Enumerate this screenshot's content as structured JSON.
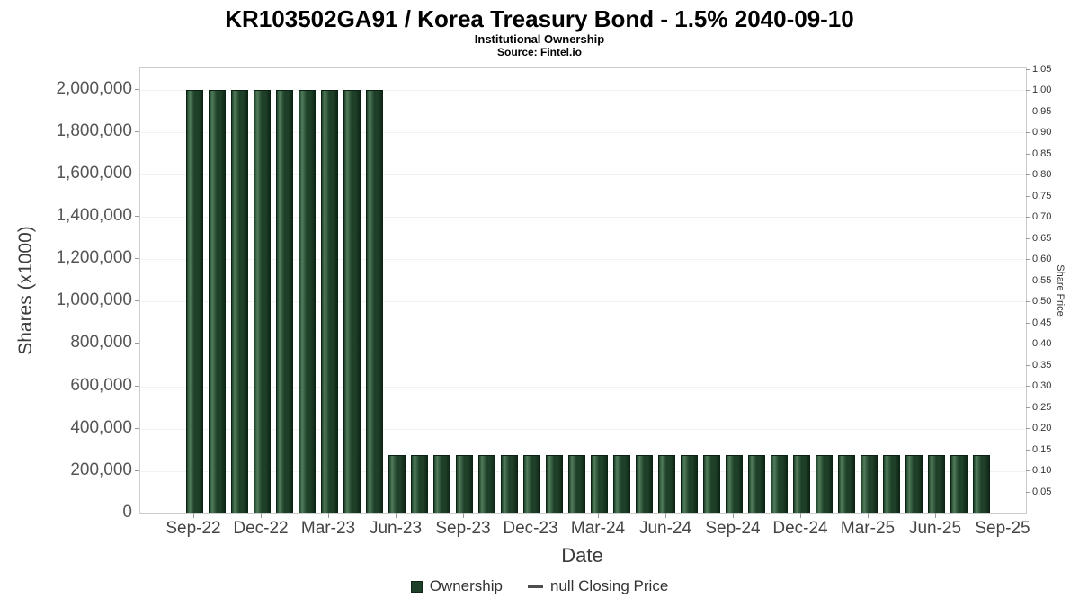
{
  "chart_data": {
    "type": "bar",
    "title": "KR103502GA91 / Korea Treasury Bond - 1.5% 2040-09-10",
    "subtitle": "Institutional Ownership",
    "source": "Source: Fintel.io",
    "xlabel": "Date",
    "ylabel_left": "Shares (x1000)",
    "ylabel_right": "Share Price",
    "categories": [
      "Sep-22",
      "Oct-22",
      "Nov-22",
      "Dec-22",
      "Jan-23",
      "Feb-23",
      "Mar-23",
      "Apr-23",
      "May-23",
      "Jun-23",
      "Jul-23",
      "Aug-23",
      "Sep-23",
      "Oct-23",
      "Nov-23",
      "Dec-23",
      "Jan-24",
      "Feb-24",
      "Mar-24",
      "Apr-24",
      "May-24",
      "Jun-24",
      "Jul-24",
      "Aug-24",
      "Sep-24",
      "Oct-24",
      "Nov-24",
      "Dec-24",
      "Jan-25",
      "Feb-25",
      "Mar-25",
      "Apr-25",
      "May-25",
      "Jun-25",
      "Jul-25",
      "Aug-25"
    ],
    "series": [
      {
        "name": "Ownership",
        "values": [
          2000000,
          2000000,
          2000000,
          2000000,
          2000000,
          2000000,
          2000000,
          2000000,
          2000000,
          275000,
          275000,
          275000,
          275000,
          275000,
          275000,
          275000,
          275000,
          275000,
          275000,
          275000,
          275000,
          275000,
          275000,
          275000,
          275000,
          275000,
          275000,
          275000,
          275000,
          275000,
          275000,
          275000,
          275000,
          275000,
          275000,
          275000
        ]
      },
      {
        "name": "null Closing Price",
        "values": []
      }
    ],
    "x_tick_labels": [
      "Sep-22",
      "Dec-22",
      "Mar-23",
      "Jun-23",
      "Sep-23",
      "Dec-23",
      "Mar-24",
      "Jun-24",
      "Sep-24",
      "Dec-24",
      "Mar-25",
      "Jun-25",
      "Sep-25"
    ],
    "y_left_ticks": [
      0,
      200000,
      400000,
      600000,
      800000,
      1000000,
      1200000,
      1400000,
      1600000,
      1800000,
      2000000
    ],
    "y_left_max": 2100000,
    "y_right_ticks": [
      0.05,
      0.1,
      0.15,
      0.2,
      0.25,
      0.3,
      0.35,
      0.4,
      0.45,
      0.5,
      0.55,
      0.6,
      0.65,
      0.7,
      0.75,
      0.8,
      0.85,
      0.9,
      0.95,
      1.0,
      1.05
    ],
    "y_right_max": 1.0532,
    "ylim_left": [
      0,
      2100000
    ],
    "ylim_right": [
      0,
      1.0532
    ],
    "legend": [
      "Ownership",
      "null Closing Price"
    ],
    "colors": {
      "bar": "#1e4029",
      "bar_light": "#527c5b",
      "bar_dark": "#0f2818",
      "legend_line": "#4d4d4d"
    },
    "grid": "faint-horizontal",
    "legend_position": "bottom-center"
  }
}
